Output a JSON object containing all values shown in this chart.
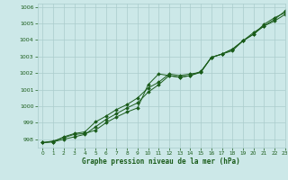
{
  "title": "Graphe pression niveau de la mer (hPa)",
  "bg_color": "#cce8e8",
  "grid_color": "#aacccc",
  "line_color": "#1a5c1a",
  "xlim": [
    -0.5,
    23
  ],
  "ylim": [
    997.5,
    1006.2
  ],
  "yticks": [
    998,
    999,
    1000,
    1001,
    1002,
    1003,
    1004,
    1005,
    1006
  ],
  "xticks": [
    0,
    1,
    2,
    3,
    4,
    5,
    6,
    7,
    8,
    9,
    10,
    11,
    12,
    13,
    14,
    15,
    16,
    17,
    18,
    19,
    20,
    21,
    22,
    23
  ],
  "line1": [
    997.8,
    997.9,
    998.1,
    998.3,
    998.35,
    998.55,
    999.0,
    999.35,
    999.65,
    999.9,
    1001.3,
    1001.95,
    1001.85,
    1001.75,
    1001.85,
    1002.05,
    1002.95,
    1003.15,
    1003.45,
    1003.95,
    1004.35,
    1004.95,
    1005.35,
    1005.65
  ],
  "line2": [
    997.8,
    997.85,
    998.0,
    998.15,
    998.3,
    998.75,
    999.2,
    999.55,
    999.9,
    1000.2,
    1000.85,
    1001.3,
    1001.85,
    1001.75,
    1001.85,
    1002.1,
    1002.95,
    1003.15,
    1003.35,
    1003.95,
    1004.45,
    1004.85,
    1005.25,
    1005.75
  ],
  "line3": [
    997.8,
    997.85,
    998.15,
    998.35,
    998.45,
    999.05,
    999.4,
    999.8,
    1000.1,
    1000.5,
    1001.1,
    1001.45,
    1001.95,
    1001.85,
    1001.95,
    1002.05,
    1002.95,
    1003.15,
    1003.45,
    1003.95,
    1004.35,
    1004.85,
    1005.15,
    1005.55
  ]
}
